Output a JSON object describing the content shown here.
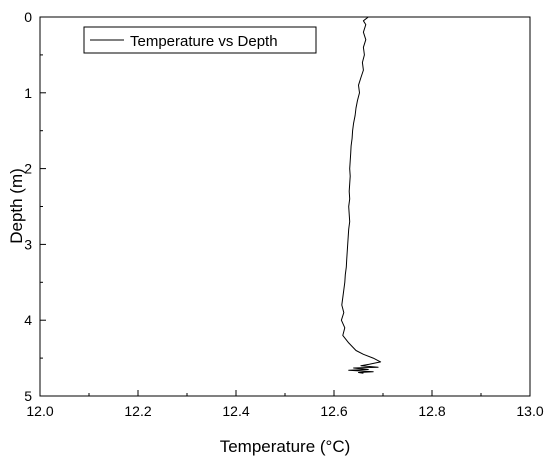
{
  "chart_data": {
    "type": "line",
    "title": "",
    "xlabel": "Temperature (°C)",
    "ylabel": "Depth (m)",
    "xlim": [
      12.0,
      13.0
    ],
    "ylim": [
      0,
      5
    ],
    "y_inverted": true,
    "x_ticks": [
      "12.0",
      "12.2",
      "12.4",
      "12.6",
      "12.8",
      "13.0"
    ],
    "x_tick_values": [
      12.0,
      12.2,
      12.4,
      12.6,
      12.8,
      13.0
    ],
    "y_ticks": [
      "0",
      "1",
      "2",
      "3",
      "4",
      "5"
    ],
    "y_tick_values": [
      0,
      1,
      2,
      3,
      4,
      5
    ],
    "grid": false,
    "legend": {
      "position": "top-left"
    },
    "series": [
      {
        "name": "Temperature vs Depth",
        "color": "#000000",
        "x": [
          12.67,
          12.66,
          12.665,
          12.66,
          12.665,
          12.66,
          12.662,
          12.658,
          12.66,
          12.655,
          12.65,
          12.652,
          12.648,
          12.645,
          12.643,
          12.64,
          12.638,
          12.637,
          12.635,
          12.634,
          12.633,
          12.632,
          12.633,
          12.632,
          12.631,
          12.632,
          12.63,
          12.631,
          12.632,
          12.63,
          12.629,
          12.628,
          12.627,
          12.626,
          12.625,
          12.623,
          12.622,
          12.62,
          12.618,
          12.616,
          12.62,
          12.615,
          12.622,
          12.618,
          12.63,
          12.645,
          12.66,
          12.68,
          12.695,
          12.672,
          12.655,
          12.69,
          12.64,
          12.67,
          12.63,
          12.68,
          12.65,
          12.66
        ],
        "y": [
          0.0,
          0.05,
          0.1,
          0.2,
          0.3,
          0.4,
          0.5,
          0.6,
          0.7,
          0.8,
          0.9,
          1.0,
          1.1,
          1.2,
          1.3,
          1.4,
          1.5,
          1.6,
          1.7,
          1.8,
          1.9,
          2.0,
          2.1,
          2.2,
          2.3,
          2.4,
          2.5,
          2.6,
          2.7,
          2.8,
          2.9,
          3.0,
          3.1,
          3.2,
          3.3,
          3.4,
          3.5,
          3.6,
          3.7,
          3.8,
          3.9,
          4.0,
          4.1,
          4.2,
          4.3,
          4.4,
          4.45,
          4.5,
          4.55,
          4.58,
          4.6,
          4.62,
          4.63,
          4.65,
          4.66,
          4.68,
          4.69,
          4.7
        ]
      }
    ]
  }
}
